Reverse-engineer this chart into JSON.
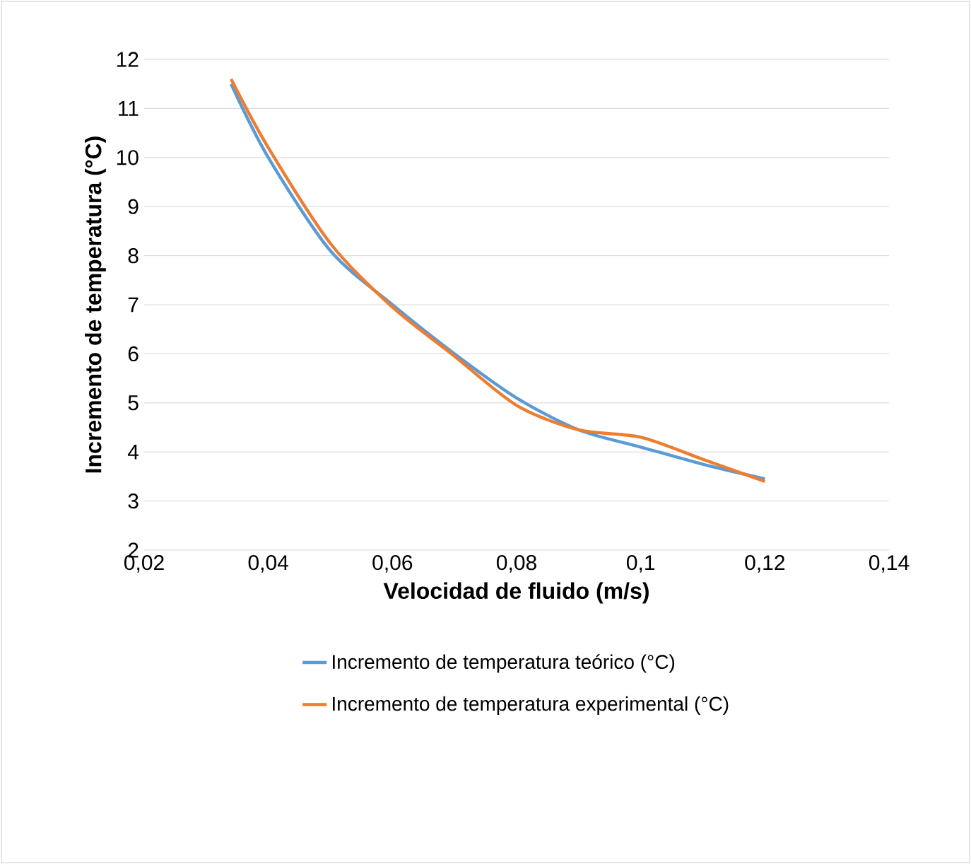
{
  "chart_data": {
    "type": "line",
    "xlabel": "Velocidad de fluido (m/s)",
    "ylabel": "Incremento de temperatura (°C)",
    "xlim": [
      0.02,
      0.14
    ],
    "xticks": [
      {
        "value": 0.02,
        "label": "0,02"
      },
      {
        "value": 0.04,
        "label": "0,04"
      },
      {
        "value": 0.06,
        "label": "0,06"
      },
      {
        "value": 0.08,
        "label": "0,08"
      },
      {
        "value": 0.1,
        "label": "0,1"
      },
      {
        "value": 0.12,
        "label": "0,12"
      },
      {
        "value": 0.14,
        "label": "0,14"
      }
    ],
    "ylim": [
      2,
      12
    ],
    "yticks": [
      2,
      3,
      4,
      5,
      6,
      7,
      8,
      9,
      10,
      11,
      12
    ],
    "grid": "y",
    "legend": "bottom",
    "line_style": "solid",
    "marker": "none",
    "series": [
      {
        "name": "Incremento de temperatura teórico (°C)",
        "color": "#5b9bd5",
        "x": [
          0.034,
          0.04,
          0.05,
          0.06,
          0.07,
          0.08,
          0.09,
          0.1,
          0.11,
          0.12
        ],
        "values": [
          11.5,
          10.0,
          8.1,
          7.0,
          6.0,
          5.1,
          4.45,
          4.1,
          3.75,
          3.45
        ]
      },
      {
        "name": "Incremento de temperatura experimental (°C)",
        "color": "#ed7d31",
        "x": [
          0.034,
          0.04,
          0.05,
          0.06,
          0.07,
          0.08,
          0.09,
          0.1,
          0.11,
          0.12
        ],
        "values": [
          11.6,
          10.2,
          8.25,
          6.95,
          5.95,
          4.95,
          4.45,
          4.3,
          3.85,
          3.4
        ]
      }
    ]
  }
}
